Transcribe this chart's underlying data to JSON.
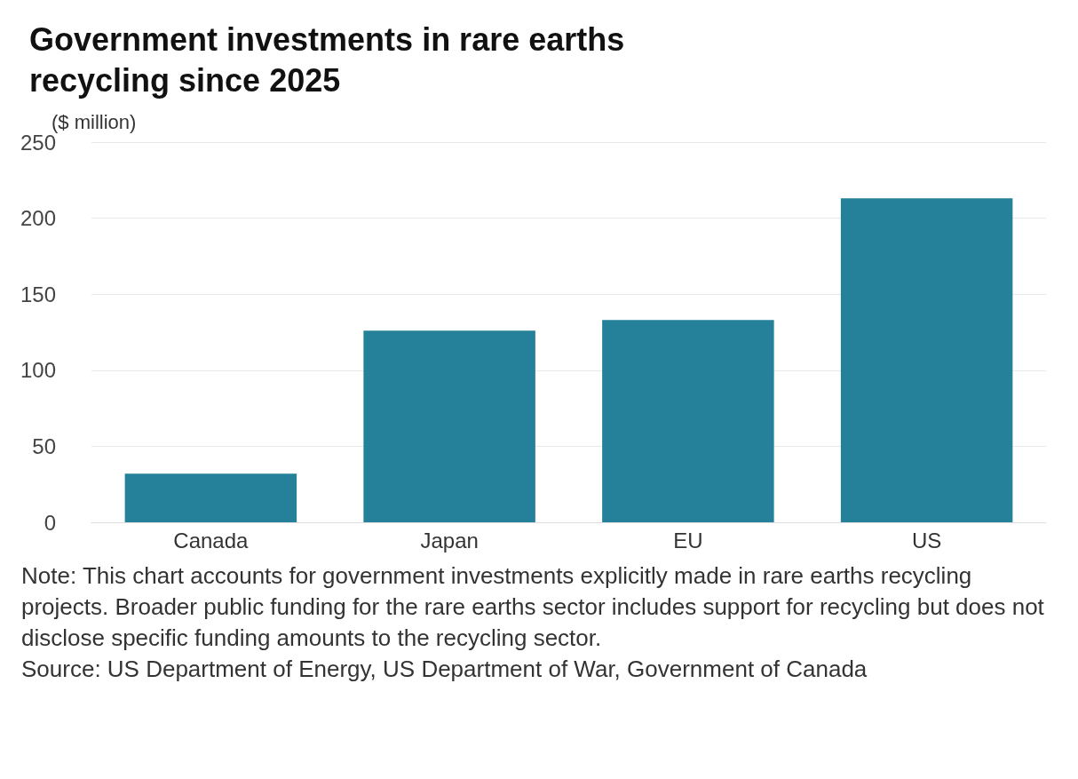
{
  "chart_data": {
    "type": "bar",
    "title": "Government investments in rare earths\nrecycling since 2025",
    "ylabel": "($ million)",
    "categories": [
      "Canada",
      "Japan",
      "EU",
      "US"
    ],
    "values": [
      32,
      126,
      133,
      213
    ],
    "color": "#25819a",
    "ylim": [
      0,
      250
    ],
    "yticks": [
      0,
      50,
      100,
      150,
      200,
      250
    ],
    "grid": "y",
    "annotations": [
      "Note: This chart accounts for government investments explicitly made in rare earths recycling projects. Broader public funding for the rare earths sector includes support for recycling but does not disclose specific funding amounts to the recycling sector.",
      "Source: US Department of Energy, US Department of War, Government of Canada"
    ]
  }
}
